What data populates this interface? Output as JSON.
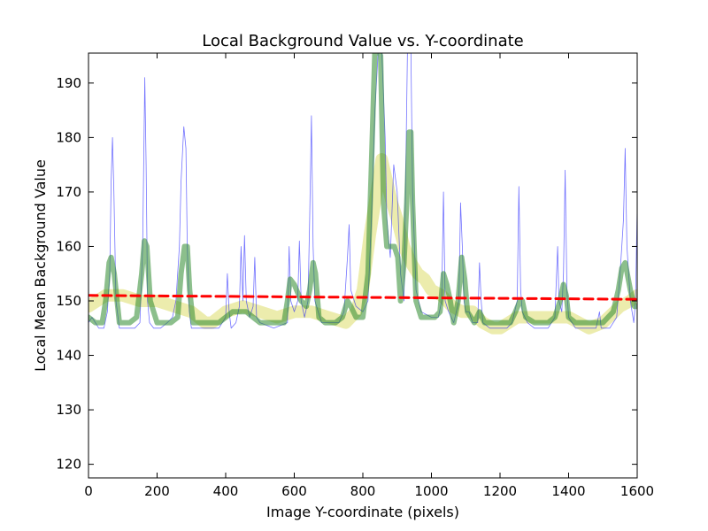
{
  "chart_data": {
    "type": "line",
    "title": "Local Background Value vs. Y-coordinate",
    "xlabel": "Image Y-coordinate (pixels)",
    "ylabel": "Local Mean Background Value",
    "xlim": [
      0,
      1600
    ],
    "ylim": [
      117.5,
      195.5
    ],
    "xticks": [
      0,
      200,
      400,
      600,
      800,
      1000,
      1200,
      1400,
      1600
    ],
    "yticks": [
      120,
      130,
      140,
      150,
      160,
      170,
      180,
      190
    ],
    "grid": false,
    "legend": "none",
    "series": [
      {
        "style": "thin-line",
        "color": "#0000ff",
        "points": [
          [
            0,
            146
          ],
          [
            10,
            147
          ],
          [
            20,
            146
          ],
          [
            30,
            145
          ],
          [
            45,
            145
          ],
          [
            55,
            148
          ],
          [
            62,
            155
          ],
          [
            66,
            172
          ],
          [
            70,
            180
          ],
          [
            74,
            170
          ],
          [
            80,
            150
          ],
          [
            90,
            145
          ],
          [
            100,
            145
          ],
          [
            120,
            145
          ],
          [
            135,
            145
          ],
          [
            150,
            146
          ],
          [
            158,
            160
          ],
          [
            164,
            191
          ],
          [
            168,
            175
          ],
          [
            172,
            150
          ],
          [
            178,
            146
          ],
          [
            190,
            145
          ],
          [
            210,
            145
          ],
          [
            230,
            146
          ],
          [
            245,
            147
          ],
          [
            255,
            150
          ],
          [
            265,
            160
          ],
          [
            270,
            172
          ],
          [
            278,
            182
          ],
          [
            284,
            178
          ],
          [
            288,
            160
          ],
          [
            294,
            148
          ],
          [
            300,
            145
          ],
          [
            340,
            145
          ],
          [
            380,
            145
          ],
          [
            400,
            147
          ],
          [
            405,
            155
          ],
          [
            410,
            148
          ],
          [
            416,
            145
          ],
          [
            430,
            146
          ],
          [
            440,
            149
          ],
          [
            445,
            160
          ],
          [
            450,
            150
          ],
          [
            455,
            162
          ],
          [
            460,
            150
          ],
          [
            470,
            147
          ],
          [
            480,
            149
          ],
          [
            485,
            158
          ],
          [
            490,
            147
          ],
          [
            500,
            146
          ],
          [
            540,
            145
          ],
          [
            580,
            146
          ],
          [
            585,
            160
          ],
          [
            590,
            150
          ],
          [
            600,
            148
          ],
          [
            610,
            150
          ],
          [
            615,
            161
          ],
          [
            620,
            150
          ],
          [
            630,
            147
          ],
          [
            640,
            150
          ],
          [
            645,
            165
          ],
          [
            650,
            184
          ],
          [
            655,
            160
          ],
          [
            660,
            150
          ],
          [
            670,
            148
          ],
          [
            680,
            146
          ],
          [
            700,
            146
          ],
          [
            730,
            146
          ],
          [
            745,
            148
          ],
          [
            755,
            158
          ],
          [
            760,
            164
          ],
          [
            765,
            152
          ],
          [
            780,
            149
          ],
          [
            800,
            148
          ],
          [
            815,
            150
          ],
          [
            825,
            165
          ],
          [
            835,
            185
          ],
          [
            845,
            196
          ],
          [
            855,
            196
          ],
          [
            865,
            180
          ],
          [
            870,
            165
          ],
          [
            880,
            158
          ],
          [
            890,
            175
          ],
          [
            900,
            170
          ],
          [
            910,
            155
          ],
          [
            920,
            150
          ],
          [
            930,
            196
          ],
          [
            940,
            196
          ],
          [
            945,
            170
          ],
          [
            955,
            152
          ],
          [
            970,
            148
          ],
          [
            1000,
            147
          ],
          [
            1020,
            147
          ],
          [
            1030,
            150
          ],
          [
            1035,
            170
          ],
          [
            1040,
            150
          ],
          [
            1050,
            148
          ],
          [
            1065,
            146
          ],
          [
            1080,
            150
          ],
          [
            1085,
            168
          ],
          [
            1090,
            160
          ],
          [
            1095,
            150
          ],
          [
            1100,
            148
          ],
          [
            1110,
            148
          ],
          [
            1120,
            146
          ],
          [
            1135,
            146
          ],
          [
            1140,
            157
          ],
          [
            1145,
            150
          ],
          [
            1150,
            146
          ],
          [
            1170,
            145
          ],
          [
            1200,
            145
          ],
          [
            1220,
            145
          ],
          [
            1235,
            146
          ],
          [
            1250,
            150
          ],
          [
            1255,
            171
          ],
          [
            1260,
            152
          ],
          [
            1265,
            148
          ],
          [
            1280,
            146
          ],
          [
            1300,
            145
          ],
          [
            1340,
            145
          ],
          [
            1360,
            147
          ],
          [
            1368,
            160
          ],
          [
            1372,
            150
          ],
          [
            1380,
            148
          ],
          [
            1385,
            155
          ],
          [
            1390,
            174
          ],
          [
            1395,
            152
          ],
          [
            1400,
            147
          ],
          [
            1420,
            145
          ],
          [
            1460,
            145
          ],
          [
            1480,
            145
          ],
          [
            1490,
            148
          ],
          [
            1495,
            145
          ],
          [
            1520,
            145
          ],
          [
            1540,
            147
          ],
          [
            1550,
            155
          ],
          [
            1555,
            160
          ],
          [
            1560,
            165
          ],
          [
            1565,
            178
          ],
          [
            1570,
            160
          ],
          [
            1580,
            150
          ],
          [
            1590,
            146
          ],
          [
            1595,
            150
          ],
          [
            1600,
            167
          ]
        ]
      },
      {
        "style": "thick-line",
        "color": "#2e8b2e",
        "points": [
          [
            0,
            147
          ],
          [
            20,
            146
          ],
          [
            40,
            146
          ],
          [
            50,
            150
          ],
          [
            60,
            157
          ],
          [
            66,
            158
          ],
          [
            75,
            155
          ],
          [
            90,
            146
          ],
          [
            100,
            146
          ],
          [
            120,
            146
          ],
          [
            140,
            147
          ],
          [
            155,
            155
          ],
          [
            163,
            161
          ],
          [
            170,
            160
          ],
          [
            180,
            150
          ],
          [
            200,
            146
          ],
          [
            240,
            146
          ],
          [
            260,
            147
          ],
          [
            270,
            155
          ],
          [
            280,
            160
          ],
          [
            288,
            160
          ],
          [
            295,
            152
          ],
          [
            305,
            146
          ],
          [
            340,
            146
          ],
          [
            380,
            146
          ],
          [
            400,
            147
          ],
          [
            420,
            148
          ],
          [
            440,
            148
          ],
          [
            460,
            148
          ],
          [
            480,
            147
          ],
          [
            500,
            146
          ],
          [
            540,
            146
          ],
          [
            570,
            146
          ],
          [
            580,
            150
          ],
          [
            588,
            154
          ],
          [
            600,
            153
          ],
          [
            620,
            150
          ],
          [
            635,
            149
          ],
          [
            645,
            152
          ],
          [
            655,
            157
          ],
          [
            662,
            155
          ],
          [
            672,
            147
          ],
          [
            690,
            146
          ],
          [
            720,
            146
          ],
          [
            740,
            147
          ],
          [
            755,
            150
          ],
          [
            765,
            149
          ],
          [
            780,
            147
          ],
          [
            800,
            147
          ],
          [
            815,
            155
          ],
          [
            825,
            175
          ],
          [
            835,
            196
          ],
          [
            845,
            196
          ],
          [
            852,
            195
          ],
          [
            860,
            168
          ],
          [
            870,
            160
          ],
          [
            882,
            160
          ],
          [
            892,
            160
          ],
          [
            902,
            158
          ],
          [
            910,
            150
          ],
          [
            920,
            157
          ],
          [
            928,
            168
          ],
          [
            935,
            181
          ],
          [
            940,
            181
          ],
          [
            945,
            168
          ],
          [
            955,
            150
          ],
          [
            970,
            147
          ],
          [
            990,
            147
          ],
          [
            1010,
            147
          ],
          [
            1025,
            148
          ],
          [
            1035,
            155
          ],
          [
            1045,
            153
          ],
          [
            1055,
            150
          ],
          [
            1065,
            146
          ],
          [
            1078,
            150
          ],
          [
            1088,
            158
          ],
          [
            1097,
            154
          ],
          [
            1105,
            148
          ],
          [
            1115,
            147
          ],
          [
            1125,
            146
          ],
          [
            1140,
            148
          ],
          [
            1155,
            146
          ],
          [
            1180,
            146
          ],
          [
            1210,
            146
          ],
          [
            1230,
            146
          ],
          [
            1245,
            148
          ],
          [
            1258,
            150
          ],
          [
            1265,
            150
          ],
          [
            1275,
            147
          ],
          [
            1300,
            146
          ],
          [
            1340,
            146
          ],
          [
            1360,
            147
          ],
          [
            1375,
            150
          ],
          [
            1385,
            153
          ],
          [
            1393,
            151
          ],
          [
            1400,
            147
          ],
          [
            1420,
            146
          ],
          [
            1460,
            146
          ],
          [
            1480,
            146
          ],
          [
            1500,
            146
          ],
          [
            1530,
            148
          ],
          [
            1545,
            152
          ],
          [
            1555,
            156
          ],
          [
            1565,
            157
          ],
          [
            1580,
            152
          ],
          [
            1592,
            149
          ],
          [
            1600,
            149
          ]
        ]
      },
      {
        "style": "wide-band",
        "color": "#d4d44a",
        "points": [
          [
            0,
            149
          ],
          [
            50,
            151
          ],
          [
            100,
            151
          ],
          [
            150,
            150
          ],
          [
            200,
            150
          ],
          [
            250,
            149
          ],
          [
            300,
            148
          ],
          [
            340,
            146
          ],
          [
            360,
            146
          ],
          [
            400,
            148
          ],
          [
            450,
            149
          ],
          [
            500,
            148
          ],
          [
            550,
            147
          ],
          [
            600,
            148
          ],
          [
            650,
            148
          ],
          [
            700,
            147
          ],
          [
            750,
            146
          ],
          [
            780,
            148
          ],
          [
            800,
            152
          ],
          [
            820,
            162
          ],
          [
            840,
            170
          ],
          [
            855,
            176
          ],
          [
            870,
            172
          ],
          [
            885,
            168
          ],
          [
            900,
            165
          ],
          [
            920,
            160
          ],
          [
            940,
            157
          ],
          [
            960,
            155
          ],
          [
            980,
            154
          ],
          [
            1000,
            152
          ],
          [
            1030,
            151
          ],
          [
            1060,
            149
          ],
          [
            1090,
            148
          ],
          [
            1120,
            148
          ],
          [
            1150,
            146
          ],
          [
            1180,
            145
          ],
          [
            1200,
            145
          ],
          [
            1250,
            147
          ],
          [
            1300,
            147
          ],
          [
            1350,
            147
          ],
          [
            1400,
            147
          ],
          [
            1430,
            146
          ],
          [
            1460,
            145
          ],
          [
            1500,
            146
          ],
          [
            1550,
            149
          ],
          [
            1580,
            150
          ],
          [
            1600,
            151
          ]
        ]
      },
      {
        "style": "dashed-line",
        "color": "#ff0000",
        "points": [
          [
            0,
            151
          ],
          [
            1600,
            150.3
          ]
        ]
      }
    ]
  }
}
